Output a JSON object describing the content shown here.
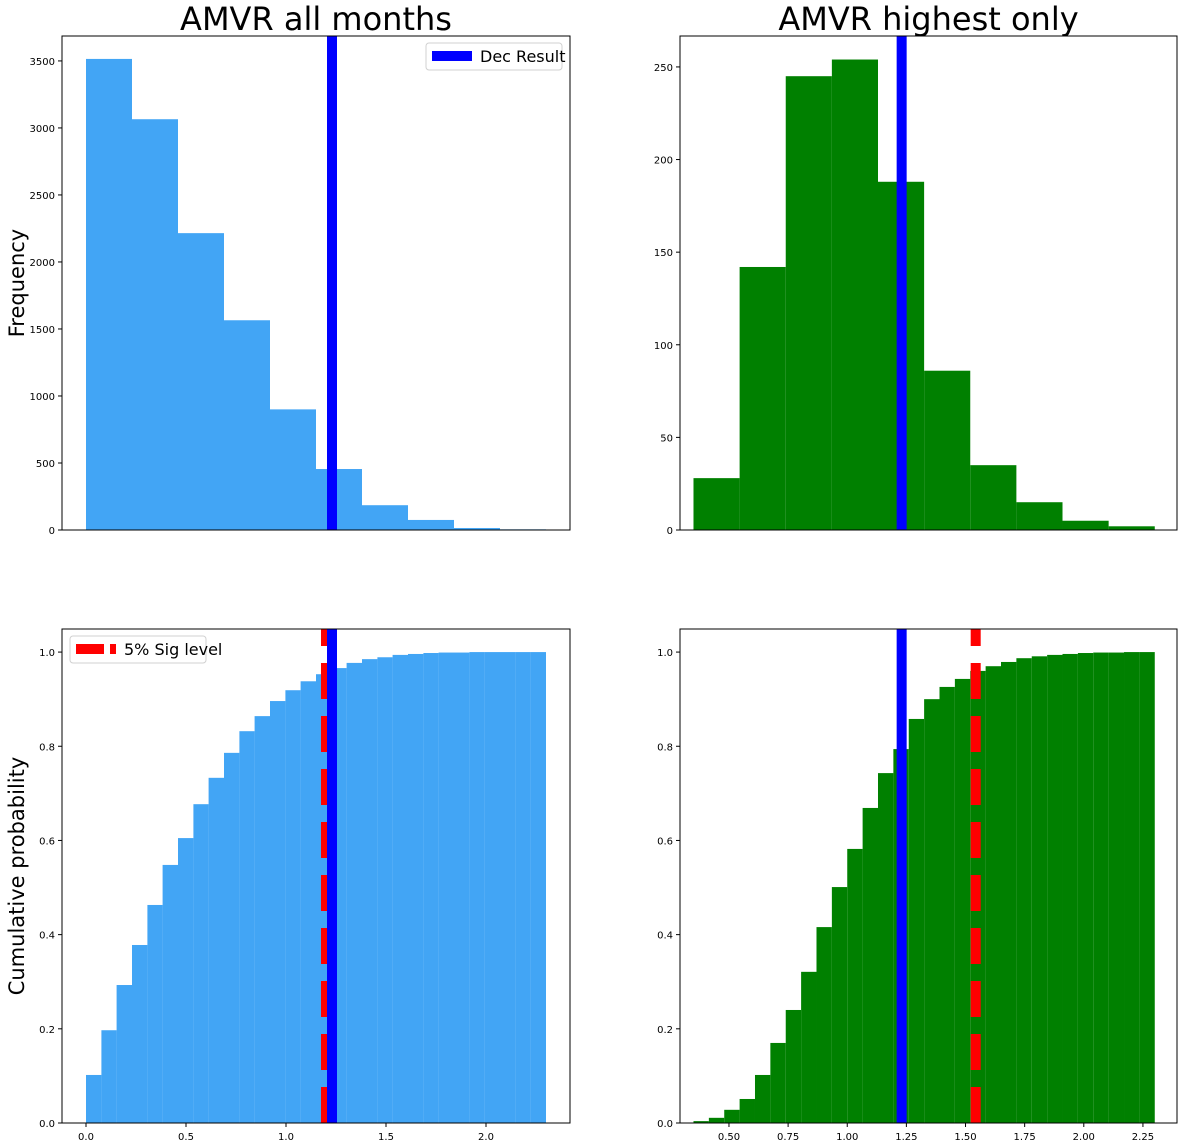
{
  "chart_data": [
    {
      "type": "histogram",
      "title": "AMVR all months",
      "ylabel": "Frequency",
      "color": "#42a5f5",
      "bins": [
        0,
        0.23,
        0.46,
        0.69,
        0.92,
        1.15,
        1.38,
        1.61,
        1.84,
        2.07,
        2.3
      ],
      "values": [
        3515,
        3065,
        2215,
        1565,
        900,
        455,
        185,
        75,
        15,
        5
      ],
      "xlim": [
        -0.12,
        2.42
      ],
      "ylim": [
        0,
        3686
      ],
      "yticks": [
        0,
        500,
        1000,
        1500,
        2000,
        2500,
        3000,
        3500
      ],
      "lines": [
        {
          "x": 1.23,
          "color": "#0000ff",
          "dashed": false,
          "name": "Dec Result"
        }
      ],
      "legend": "upper right"
    },
    {
      "type": "histogram",
      "title": "AMVR highest only",
      "color": "#008000",
      "bins": [
        0.35,
        0.545,
        0.74,
        0.935,
        1.13,
        1.325,
        1.52,
        1.715,
        1.91,
        2.105,
        2.3
      ],
      "values": [
        28,
        142,
        245,
        254,
        188,
        86,
        35,
        15,
        5,
        2
      ],
      "xlim": [
        0.293,
        2.394
      ],
      "ylim": [
        0,
        266.7
      ],
      "yticks": [
        0,
        50,
        100,
        150,
        200,
        250
      ],
      "lines": [
        {
          "x": 1.23,
          "color": "#0000ff",
          "dashed": false
        }
      ]
    },
    {
      "type": "histogram",
      "ylabel": "Cumulative probability",
      "color": "#42a5f5",
      "bins": [
        0,
        0.077,
        0.153,
        0.23,
        0.307,
        0.383,
        0.46,
        0.537,
        0.613,
        0.69,
        0.767,
        0.843,
        0.92,
        0.997,
        1.073,
        1.15,
        1.227,
        1.303,
        1.38,
        1.457,
        1.533,
        1.61,
        1.687,
        1.763,
        1.84,
        1.917,
        1.993,
        2.07,
        2.147,
        2.223,
        2.3
      ],
      "values": [
        0.102,
        0.197,
        0.293,
        0.378,
        0.463,
        0.548,
        0.605,
        0.677,
        0.733,
        0.786,
        0.832,
        0.864,
        0.896,
        0.919,
        0.938,
        0.953,
        0.966,
        0.977,
        0.985,
        0.989,
        0.994,
        0.996,
        0.998,
        0.999,
        0.999,
        1.0,
        1.0,
        1.0,
        1.0,
        1.0
      ],
      "xlim": [
        -0.12,
        2.42
      ],
      "ylim": [
        0,
        1.049
      ],
      "xticks": [
        {
          "value": 0,
          "label": "0.0"
        },
        0.5,
        {
          "value": 1,
          "label": "1.0"
        },
        1.5,
        {
          "value": 2,
          "label": "2.0"
        }
      ],
      "yticks": [
        {
          "value": 0,
          "label": "0.0"
        },
        0.2,
        0.4,
        0.6,
        0.8,
        {
          "value": 1,
          "label": "1.0"
        }
      ],
      "lines": [
        {
          "x": 1.2,
          "color": "#ff0000",
          "dashed": true,
          "name": "5% Sig level"
        },
        {
          "x": 1.23,
          "color": "#0000ff",
          "dashed": false
        }
      ],
      "legend": "upper left"
    },
    {
      "type": "histogram",
      "color": "#008000",
      "bins": [
        0.35,
        0.415,
        0.48,
        0.545,
        0.61,
        0.675,
        0.74,
        0.805,
        0.87,
        0.935,
        1.0,
        1.065,
        1.13,
        1.195,
        1.26,
        1.325,
        1.39,
        1.455,
        1.52,
        1.585,
        1.65,
        1.715,
        1.78,
        1.845,
        1.91,
        1.975,
        2.04,
        2.105,
        2.17,
        2.235,
        2.3
      ],
      "values": [
        0.004,
        0.011,
        0.028,
        0.051,
        0.102,
        0.17,
        0.24,
        0.321,
        0.416,
        0.501,
        0.582,
        0.669,
        0.743,
        0.794,
        0.858,
        0.9,
        0.926,
        0.943,
        0.96,
        0.97,
        0.979,
        0.987,
        0.991,
        0.994,
        0.996,
        0.998,
        0.999,
        0.999,
        1.0,
        1.0
      ],
      "xlim": [
        0.293,
        2.394
      ],
      "ylim": [
        0,
        1.049
      ],
      "xticks": [
        {
          "value": 0.5,
          "label": "0.50"
        },
        0.75,
        {
          "value": 1,
          "label": "1.00"
        },
        1.25,
        {
          "value": 1.5,
          "label": "1.50"
        },
        1.75,
        {
          "value": 2,
          "label": "2.00"
        },
        2.25
      ],
      "yticks": [
        {
          "value": 0,
          "label": "0.0"
        },
        0.2,
        0.4,
        0.6,
        0.8,
        {
          "value": 1,
          "label": "1.0"
        }
      ],
      "lines": [
        {
          "x": 1.23,
          "color": "#0000ff",
          "dashed": false
        },
        {
          "x": 1.543,
          "color": "#ff0000",
          "dashed": true
        }
      ]
    }
  ]
}
